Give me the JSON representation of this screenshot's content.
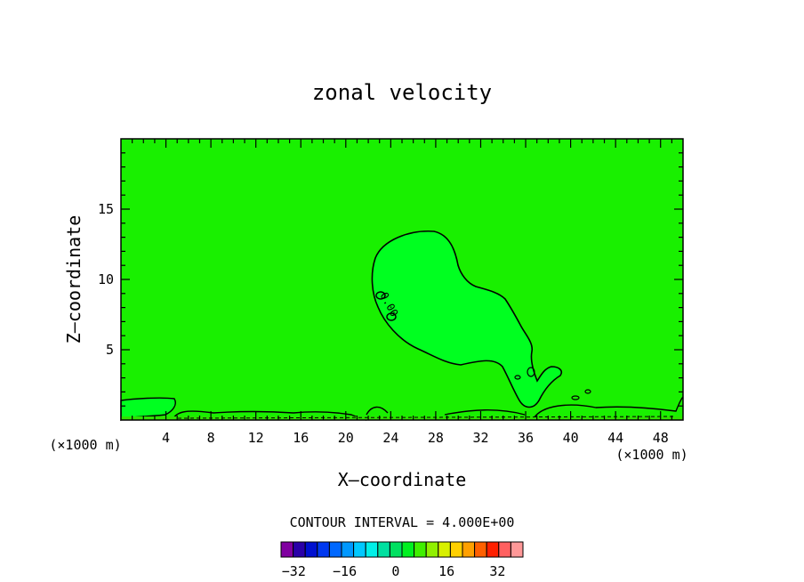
{
  "chart_data": {
    "type": "heatmap",
    "title": "zonal velocity",
    "xlabel": "X–coordinate",
    "ylabel": "Z–coordinate",
    "x_unit_left": "(×1000 m)",
    "x_unit_right": "(×1000 m)",
    "xlim": [
      0,
      50
    ],
    "ylim": [
      0,
      20
    ],
    "x_ticks": [
      4,
      8,
      12,
      16,
      20,
      24,
      28,
      32,
      36,
      40,
      44,
      48
    ],
    "y_ticks": [
      5,
      10,
      15
    ],
    "contour_label": "0.00",
    "contour_interval_text": "CONTOUR INTERVAL = 4.000E+00",
    "colorbar": {
      "levels": [
        -36,
        -32,
        -28,
        -24,
        -20,
        -16,
        -12,
        -8,
        -4,
        0,
        4,
        8,
        12,
        16,
        20,
        24,
        28,
        32,
        36,
        40
      ],
      "tick_labels": [
        "−32",
        "−16",
        "0",
        "16",
        "32"
      ],
      "tick_values": [
        -32,
        -16,
        0,
        16,
        32
      ],
      "colors": [
        "#8000a0",
        "#2a00a8",
        "#0010d0",
        "#0038f0",
        "#0068ff",
        "#0098ff",
        "#00c8ff",
        "#00f0e8",
        "#00e0a0",
        "#00e060",
        "#00f020",
        "#40f000",
        "#90f000",
        "#d8f000",
        "#ffd000",
        "#ffa000",
        "#ff6000",
        "#ff2000",
        "#ff6060",
        "#ff9898"
      ]
    },
    "field": {
      "background_value_range": [
        0,
        4
      ],
      "background_color": "#19f000",
      "positive_region_color": "#00ff20",
      "near_surface_negative_color": "#30e000"
    }
  }
}
